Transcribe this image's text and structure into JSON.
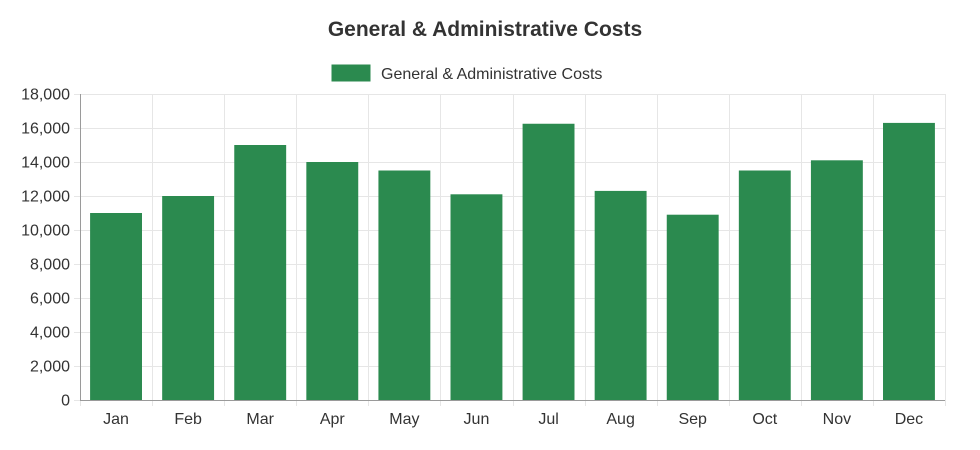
{
  "chart_data": {
    "type": "bar",
    "title": "General & Administrative Costs",
    "xlabel": "",
    "ylabel": "",
    "ylim": [
      0,
      18000
    ],
    "yticks": [
      0,
      2000,
      4000,
      6000,
      8000,
      10000,
      12000,
      14000,
      16000,
      18000
    ],
    "ytick_labels": [
      "0",
      "2,000",
      "4,000",
      "6,000",
      "8,000",
      "10,000",
      "12,000",
      "14,000",
      "16,000",
      "18,000"
    ],
    "categories": [
      "Jan",
      "Feb",
      "Mar",
      "Apr",
      "May",
      "Jun",
      "Jul",
      "Aug",
      "Sep",
      "Oct",
      "Nov",
      "Dec"
    ],
    "grid": true,
    "legend_position": "top",
    "series": [
      {
        "name": "General & Administrative Costs",
        "color": "#2b8a4f",
        "values": [
          11000,
          12000,
          15000,
          14000,
          13500,
          12100,
          16250,
          12300,
          10900,
          13500,
          14100,
          16300
        ]
      }
    ]
  }
}
